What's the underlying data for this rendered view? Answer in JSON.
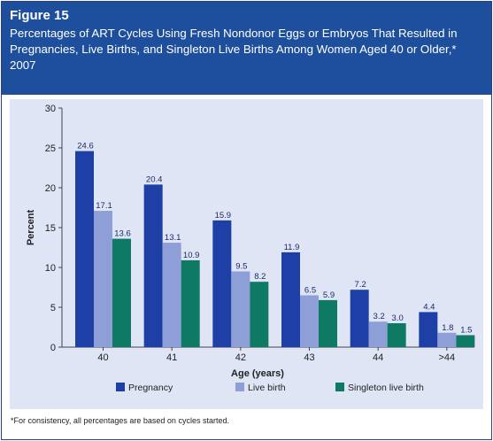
{
  "figure": {
    "label": "Figure 15",
    "title": "Percentages of ART Cycles Using Fresh Nondonor Eggs or Embryos That Resulted in Pregnancies, Live Births, and Singleton Live Births Among Women Aged 40 or Older,* 2007",
    "footnote": "*For consistency, all percentages are based on cycles started."
  },
  "chart_data": {
    "type": "bar",
    "xlabel": "Age (years)",
    "ylabel": "Percent",
    "ylim": [
      0,
      30
    ],
    "yticks": [
      0,
      5,
      10,
      15,
      20,
      25,
      30
    ],
    "grid": false,
    "legend_position": "bottom",
    "categories": [
      "40",
      "41",
      "42",
      "43",
      "44",
      ">44"
    ],
    "series": [
      {
        "name": "Pregnancy",
        "color": "#1d3fa6",
        "values": [
          24.6,
          20.4,
          15.9,
          11.9,
          7.2,
          4.4
        ],
        "labels": [
          "24.6",
          "20.4",
          "15.9",
          "11.9",
          "7.2",
          "4.4"
        ]
      },
      {
        "name": "Live birth",
        "color": "#8d9fd6",
        "values": [
          17.1,
          13.1,
          9.5,
          6.5,
          3.2,
          1.8
        ],
        "labels": [
          "17.1",
          "13.1",
          "9.5",
          "6.5",
          "3.2",
          "1.8"
        ]
      },
      {
        "name": "Singleton live birth",
        "color": "#0e7a63",
        "values": [
          13.6,
          10.9,
          8.2,
          5.9,
          3.0,
          1.5
        ],
        "labels": [
          "13.6",
          "10.9",
          "8.2",
          "5.9",
          "3.0",
          "1.5"
        ]
      }
    ]
  }
}
